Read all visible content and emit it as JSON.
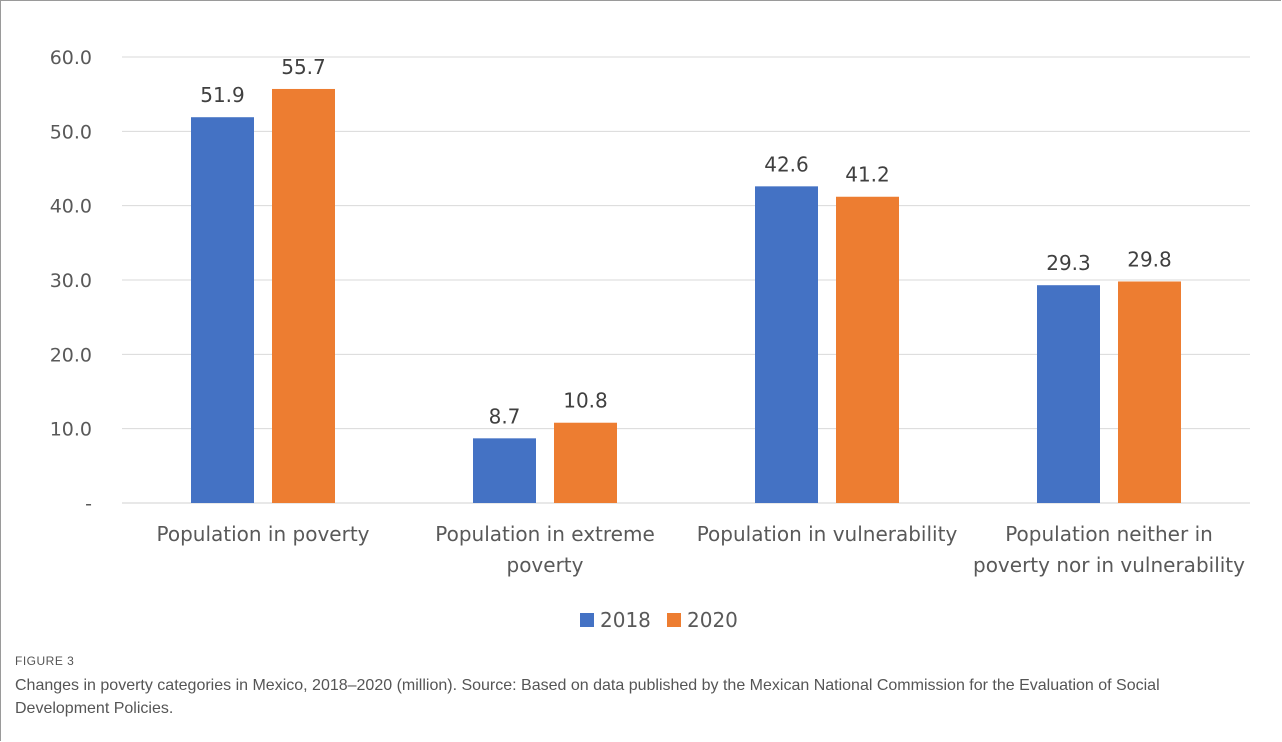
{
  "chart_data": {
    "type": "bar",
    "categories": [
      [
        "Population in poverty"
      ],
      [
        "Population in extreme",
        "poverty"
      ],
      [
        "Population in vulnerability"
      ],
      [
        "Population neither in",
        "poverty nor in vulnerability"
      ]
    ],
    "series": [
      {
        "name": "2018",
        "color": "#4472C4",
        "values": [
          51.9,
          8.7,
          42.6,
          29.3
        ],
        "labels": [
          "51.9",
          "8.7",
          "42.6",
          "29.3"
        ]
      },
      {
        "name": "2020",
        "color": "#ED7D31",
        "values": [
          55.7,
          10.8,
          41.2,
          29.8
        ],
        "labels": [
          "55.7",
          "10.8",
          "41.2",
          "29.8"
        ]
      }
    ],
    "yticks": [
      "-",
      "10.0",
      "20.0",
      "30.0",
      "40.0",
      "50.0",
      "60.0"
    ],
    "ylim": [
      0,
      60
    ],
    "grid": true,
    "legend": "bottom"
  },
  "caption": {
    "label": "FIGURE 3",
    "text": "Changes in poverty categories in Mexico, 2018–2020 (million). Source: Based on data published by the Mexican National Commission for the Evaluation of Social Development Policies."
  }
}
